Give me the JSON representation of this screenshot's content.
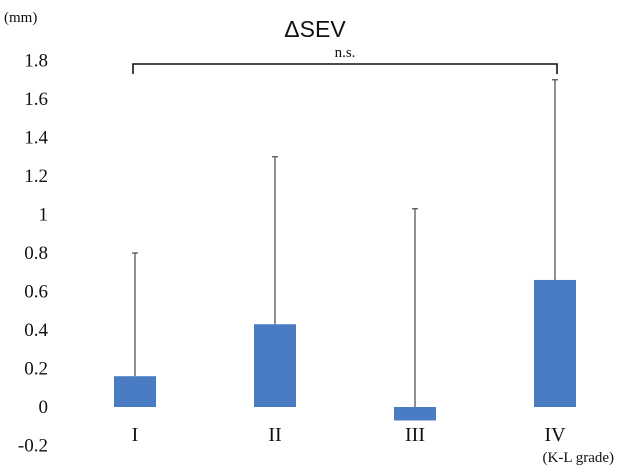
{
  "chart_data": {
    "type": "bar",
    "title": "ΔSEV",
    "ylabel": "(mm)",
    "xlabel": "(K-L grade)",
    "categories": [
      "I",
      "II",
      "III",
      "IV"
    ],
    "values": [
      0.16,
      0.43,
      -0.07,
      0.66
    ],
    "error_upper": [
      0.8,
      1.3,
      1.03,
      1.7
    ],
    "ylim": [
      -0.2,
      1.9
    ],
    "yticks": [
      "-0.2",
      "0",
      "0.2",
      "0.4",
      "0.6",
      "0.8",
      "1",
      "1.2",
      "1.4",
      "1.6",
      "1.8"
    ],
    "annotation": "n.s.",
    "bar_color": "#4a7cc4",
    "grid": false,
    "legend": "none"
  }
}
